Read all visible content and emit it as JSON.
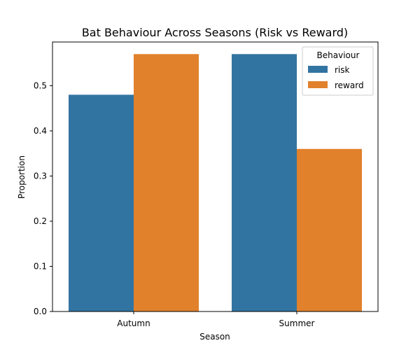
{
  "chart_data": {
    "type": "bar",
    "title": "Bat Behaviour Across Seasons (Risk vs Reward)",
    "xlabel": "Season",
    "ylabel": "Proportion",
    "categories": [
      "Autumn",
      "Summer"
    ],
    "series": [
      {
        "name": "risk",
        "values": [
          0.48,
          0.57
        ],
        "color": "#3274a1"
      },
      {
        "name": "reward",
        "values": [
          0.57,
          0.36
        ],
        "color": "#e1812c"
      }
    ],
    "ylim": [
      0,
      0.6
    ],
    "yticks": [
      "0.0",
      "0.1",
      "0.2",
      "0.3",
      "0.4",
      "0.5"
    ],
    "grid": false,
    "legend": {
      "title": "Behaviour",
      "position": "top-right"
    }
  }
}
